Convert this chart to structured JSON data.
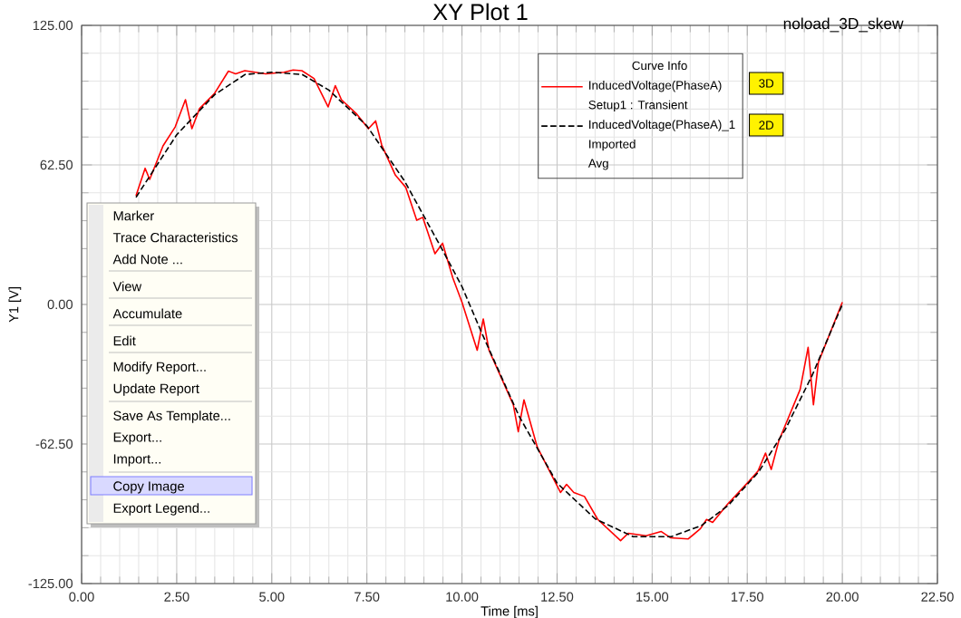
{
  "chart_data": {
    "type": "line",
    "title": "XY Plot 1",
    "xlabel": "Time [ms]",
    "ylabel": "Y1 [V]",
    "legend_title": "Curve Info",
    "legend": "top right",
    "grid": true,
    "marker": "none",
    "xlim": [
      0,
      22.5
    ],
    "xticks": [
      {
        "value": 0,
        "label": "0.00"
      },
      {
        "value": 2.5,
        "label": "2.50"
      },
      {
        "value": 5,
        "label": "5.00"
      },
      {
        "value": 7.5,
        "label": "7.50"
      },
      {
        "value": 10,
        "label": "10.00"
      },
      {
        "value": 12.5,
        "label": "12.50"
      },
      {
        "value": 15,
        "label": "15.00"
      },
      {
        "value": 17.5,
        "label": "17.50"
      },
      {
        "value": 20,
        "label": "20.00"
      },
      {
        "value": 22.5,
        "label": "22.50"
      }
    ],
    "ylim": [
      -125,
      125
    ],
    "yticks": [
      {
        "value": -125,
        "label": "-125.00"
      },
      {
        "value": -62.5,
        "label": "-62.50"
      },
      {
        "value": 0,
        "label": "0.00"
      },
      {
        "value": 62.5,
        "label": "62.50"
      },
      {
        "value": 125,
        "label": "125.00"
      }
    ],
    "series": [
      {
        "name": "InducedVoltage(PhaseA)",
        "color": "#ff0000",
        "line_style": "solid",
        "x": [
          1.43,
          1.67,
          1.79,
          2.14,
          2.46,
          2.73,
          2.9,
          3.1,
          3.49,
          3.86,
          4.05,
          4.29,
          4.84,
          5.32,
          5.56,
          5.79,
          6.11,
          6.48,
          6.67,
          6.83,
          7.22,
          7.54,
          7.73,
          7.89,
          8.25,
          8.52,
          8.81,
          8.97,
          9.29,
          9.49,
          9.76,
          10.0,
          10.4,
          10.56,
          10.71,
          11.35,
          11.48,
          11.63,
          11.98,
          12.59,
          12.75,
          12.94,
          13.22,
          13.57,
          14.17,
          14.37,
          14.84,
          15.24,
          15.48,
          15.95,
          16.27,
          16.43,
          16.59,
          16.98,
          17.54,
          17.78,
          17.98,
          18.13,
          18.33,
          18.89,
          19.1,
          19.24,
          19.37,
          20.0
        ],
        "values": [
          48.7,
          61,
          56,
          71,
          79.5,
          91.7,
          78.7,
          87.7,
          94.4,
          104.5,
          103.3,
          104.7,
          103.3,
          104,
          105,
          104.7,
          101.2,
          88.5,
          98,
          91.7,
          85.5,
          78.7,
          82.2,
          71.4,
          57.9,
          52.5,
          37.7,
          39,
          22.7,
          27.4,
          11.9,
          1,
          -20.5,
          -6.5,
          -20.5,
          -44.9,
          -57,
          -42.7,
          -63.9,
          -84.2,
          -80.6,
          -84.2,
          -86,
          -96.3,
          -105.8,
          -102.5,
          -103.6,
          -101.7,
          -104.5,
          -105,
          -100.4,
          -96.3,
          -97.6,
          -89.5,
          -79.3,
          -74.7,
          -66.6,
          -73.9,
          -61.1,
          -38.1,
          -19.2,
          -44.9,
          -26,
          1
        ]
      },
      {
        "name": "InducedVoltage(PhaseA)_1",
        "color": "#000000",
        "line_style": "dashed",
        "x": [
          1.43,
          2.5,
          3.5,
          4.3,
          5,
          5.8,
          6.5,
          7.5,
          8.5,
          9.5,
          10,
          10.5,
          11.5,
          12.5,
          13.5,
          14.5,
          15.5,
          16.3,
          17,
          17.8,
          18.5,
          19.2,
          20
        ],
        "values": [
          48,
          76,
          94,
          103,
          104,
          103,
          96,
          80,
          55,
          24,
          8,
          -12,
          -50,
          -80,
          -96,
          -104,
          -104,
          -99,
          -90,
          -75,
          -56,
          -32,
          0
        ]
      }
    ],
    "annotations": [
      "noload_3D_skew",
      "Setup1 : Transient",
      "Imported",
      "Avg",
      "3D",
      "2D",
      "Marker",
      "Trace Characteristics",
      "Add Note ...",
      "View",
      "Accumulate",
      "Edit",
      "Modify Report...",
      "Update Report",
      "Save As Template...",
      "Export...",
      "Import...",
      "Copy Image",
      "Export Legend..."
    ]
  }
}
